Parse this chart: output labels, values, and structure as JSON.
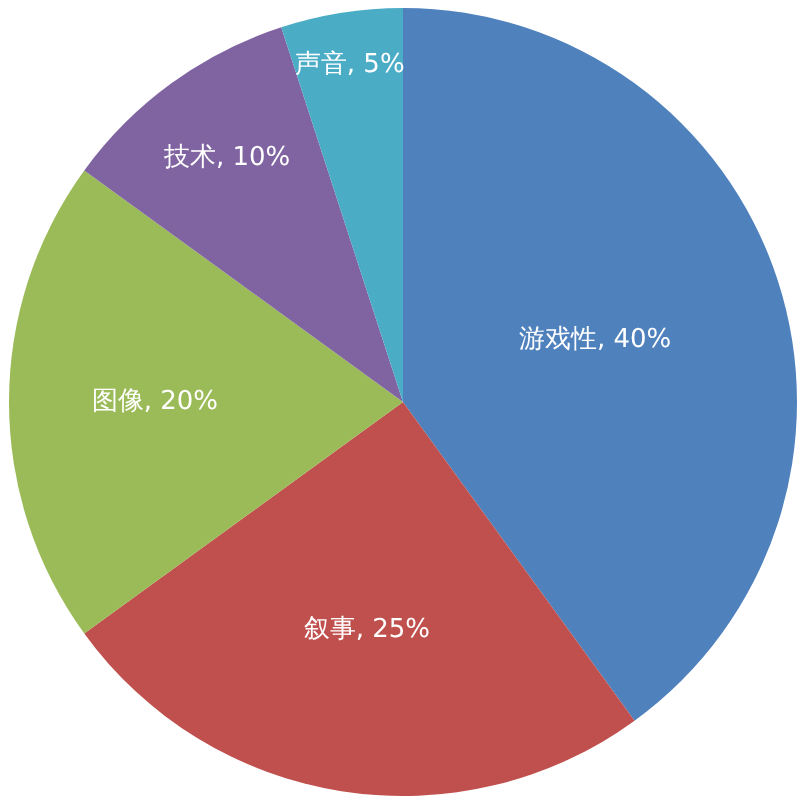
{
  "chart_data": {
    "type": "pie",
    "categories": [
      "游戏性",
      "叙事",
      "图像",
      "技术",
      "声音"
    ],
    "values": [
      40,
      25,
      20,
      10,
      5
    ],
    "value_labels": [
      "40%",
      "25%",
      "20%",
      "10%",
      "5%"
    ],
    "colors": [
      "#4f81bd",
      "#c0504d",
      "#9bbb59",
      "#8064a2",
      "#4bacc6"
    ],
    "legend": false
  }
}
